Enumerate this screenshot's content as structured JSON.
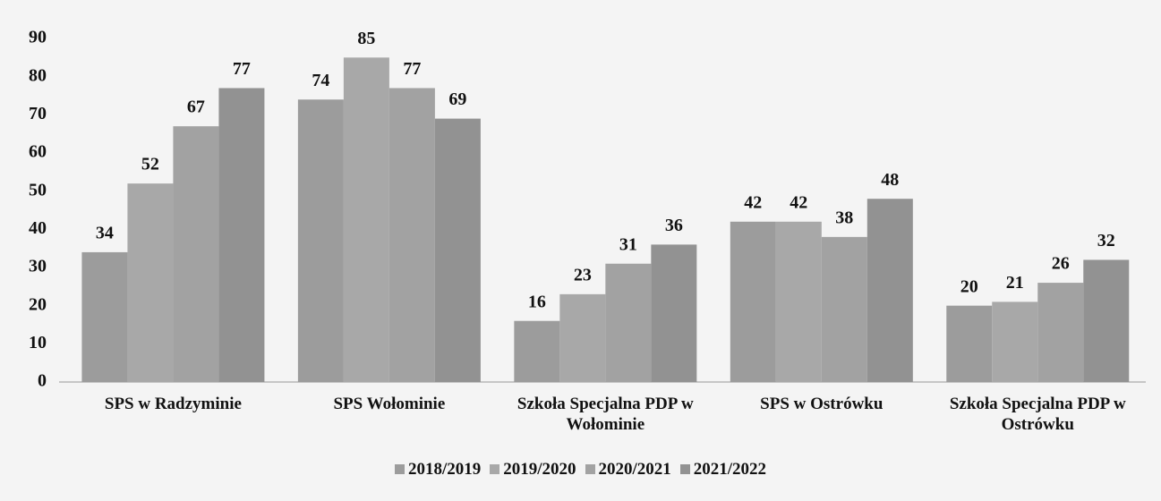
{
  "chart_data": {
    "type": "bar",
    "categories": [
      "SPS w Radzyminie",
      "SPS Wołominie",
      "Szkoła Specjalna PDP w Wołominie",
      "SPS w Ostrówku",
      "Szkoła Specjalna PDP w Ostrówku"
    ],
    "series": [
      {
        "name": "2018/2019",
        "color": "#9c9c9c",
        "values": [
          34,
          74,
          16,
          42,
          20
        ]
      },
      {
        "name": "2019/2020",
        "color": "#a8a8a8",
        "values": [
          52,
          85,
          23,
          42,
          21
        ]
      },
      {
        "name": "2020/2021",
        "color": "#a2a2a2",
        "values": [
          67,
          77,
          31,
          38,
          26
        ]
      },
      {
        "name": "2021/2022",
        "color": "#929292",
        "values": [
          77,
          69,
          36,
          48,
          32
        ]
      }
    ],
    "ylim": [
      0,
      90
    ],
    "yticks": [
      0,
      10,
      20,
      30,
      40,
      50,
      60,
      70,
      80,
      90
    ],
    "legend": "bottom"
  }
}
